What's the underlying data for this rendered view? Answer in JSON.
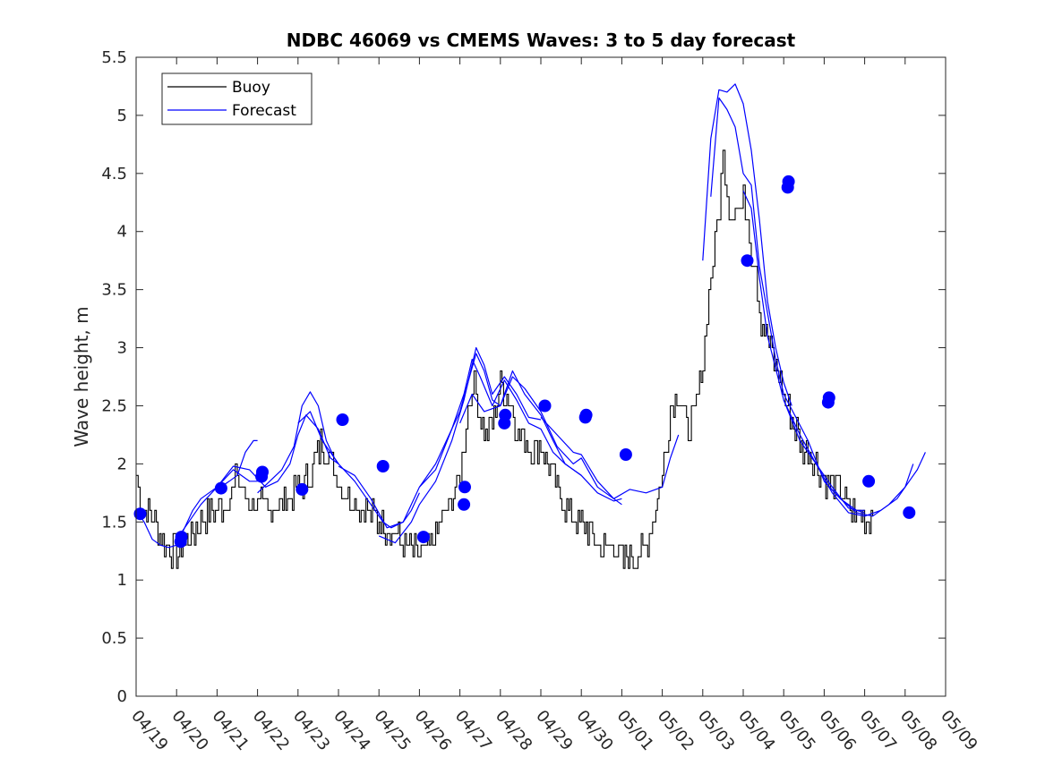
{
  "chart_data": {
    "type": "line",
    "title": "NDBC 46069 vs CMEMS Waves: 3 to 5 day forecast",
    "xlabel": "",
    "ylabel": "Wave height, m",
    "xlim": [
      "04/19",
      "05/09"
    ],
    "ylim": [
      0,
      5.5
    ],
    "x_tick_labels": [
      "04/19",
      "04/20",
      "04/21",
      "04/22",
      "04/23",
      "04/24",
      "04/25",
      "04/26",
      "04/27",
      "04/28",
      "04/29",
      "04/30",
      "05/01",
      "05/02",
      "05/03",
      "05/04",
      "05/05",
      "05/06",
      "05/07",
      "05/08",
      "05/09"
    ],
    "y_tick_labels": [
      "0",
      "0.5",
      "1",
      "1.5",
      "2",
      "2.5",
      "3",
      "3.5",
      "4",
      "4.5",
      "5",
      "5.5"
    ],
    "y_ticks": [
      0,
      0.5,
      1,
      1.5,
      2,
      2.5,
      3,
      3.5,
      4,
      4.5,
      5,
      5.5
    ],
    "grid": false,
    "legend": {
      "placement": "top-left",
      "entries": [
        "Buoy",
        "Forecast"
      ]
    },
    "colors": {
      "buoy": "#000000",
      "forecast": "#0000ff",
      "marker": "#0000ff"
    },
    "buoy": {
      "name": "Buoy",
      "points": [
        [
          0,
          1.9
        ],
        [
          0.1,
          1.7
        ],
        [
          0.3,
          1.6
        ],
        [
          0.5,
          1.5
        ],
        [
          0.7,
          1.3
        ],
        [
          1,
          1.25
        ],
        [
          1.2,
          1.3
        ],
        [
          1.4,
          1.4
        ],
        [
          1.6,
          1.5
        ],
        [
          1.8,
          1.55
        ],
        [
          2.0,
          1.6
        ],
        [
          2.2,
          1.65
        ],
        [
          2.4,
          1.75
        ],
        [
          2.5,
          1.9
        ],
        [
          2.7,
          1.7
        ],
        [
          3,
          1.65
        ],
        [
          3.3,
          1.6
        ],
        [
          3.5,
          1.65
        ],
        [
          3.7,
          1.7
        ],
        [
          3.9,
          1.75
        ],
        [
          4,
          1.8
        ],
        [
          4.2,
          1.85
        ],
        [
          4.4,
          2.0
        ],
        [
          4.6,
          2.2
        ],
        [
          4.8,
          2.05
        ],
        [
          5,
          1.85
        ],
        [
          5.2,
          1.75
        ],
        [
          5.4,
          1.7
        ],
        [
          5.6,
          1.6
        ],
        [
          5.8,
          1.55
        ],
        [
          6,
          1.5
        ],
        [
          6.2,
          1.45
        ],
        [
          6.4,
          1.4
        ],
        [
          6.6,
          1.3
        ],
        [
          6.8,
          1.25
        ],
        [
          7,
          1.2
        ],
        [
          7.2,
          1.25
        ],
        [
          7.4,
          1.4
        ],
        [
          7.6,
          1.55
        ],
        [
          7.8,
          1.7
        ],
        [
          8,
          1.85
        ],
        [
          8.1,
          2.2
        ],
        [
          8.2,
          2.5
        ],
        [
          8.3,
          2.7
        ],
        [
          8.4,
          2.55
        ],
        [
          8.6,
          2.25
        ],
        [
          8.8,
          2.35
        ],
        [
          9,
          2.7
        ],
        [
          9.2,
          2.6
        ],
        [
          9.4,
          2.3
        ],
        [
          9.6,
          2.2
        ],
        [
          9.8,
          2.1
        ],
        [
          10,
          2.15
        ],
        [
          10.2,
          2.0
        ],
        [
          10.4,
          1.8
        ],
        [
          10.6,
          1.6
        ],
        [
          10.8,
          1.55
        ],
        [
          11,
          1.5
        ],
        [
          11.2,
          1.4
        ],
        [
          11.4,
          1.3
        ],
        [
          11.6,
          1.25
        ],
        [
          11.8,
          1.3
        ],
        [
          12,
          1.15
        ],
        [
          12.2,
          1.2
        ],
        [
          12.4,
          1.2
        ],
        [
          12.6,
          1.3
        ],
        [
          12.8,
          1.6
        ],
        [
          13,
          1.9
        ],
        [
          13.2,
          2.5
        ],
        [
          13.4,
          2.6
        ],
        [
          13.6,
          2.3
        ],
        [
          13.8,
          2.4
        ],
        [
          14,
          2.9
        ],
        [
          14.1,
          3.3
        ],
        [
          14.2,
          3.6
        ],
        [
          14.3,
          3.9
        ],
        [
          14.4,
          4.2
        ],
        [
          14.5,
          4.6
        ],
        [
          14.6,
          4.4
        ],
        [
          14.7,
          4.1
        ],
        [
          14.8,
          4.3
        ],
        [
          14.9,
          4.2
        ],
        [
          15,
          4.25
        ],
        [
          15.1,
          4.15
        ],
        [
          15.2,
          3.8
        ],
        [
          15.3,
          3.7
        ],
        [
          15.4,
          3.3
        ],
        [
          15.6,
          3.1
        ],
        [
          15.8,
          2.8
        ],
        [
          16,
          2.6
        ],
        [
          16.2,
          2.4
        ],
        [
          16.4,
          2.2
        ],
        [
          16.6,
          2.1
        ],
        [
          16.8,
          2.0
        ],
        [
          17,
          1.85
        ],
        [
          17.2,
          1.8
        ],
        [
          17.4,
          1.75
        ],
        [
          17.6,
          1.6
        ],
        [
          17.8,
          1.55
        ],
        [
          18,
          1.55
        ],
        [
          18.2,
          1.55
        ]
      ]
    },
    "forecast_series": [
      {
        "name": "Forecast",
        "points": [
          [
            0,
            1.6
          ],
          [
            0.2,
            1.5
          ],
          [
            0.4,
            1.35
          ],
          [
            0.6,
            1.3
          ],
          [
            0.8,
            1.28
          ],
          [
            1,
            1.3
          ],
          [
            1.2,
            1.45
          ],
          [
            1.4,
            1.6
          ],
          [
            1.6,
            1.7
          ],
          [
            2,
            1.8
          ],
          [
            2.4,
            1.95
          ],
          [
            2.6,
            1.9
          ],
          [
            2.8,
            1.85
          ],
          [
            3,
            1.85
          ]
        ]
      },
      {
        "name": "Forecast",
        "points": [
          [
            1,
            1.35
          ],
          [
            1.3,
            1.5
          ],
          [
            1.6,
            1.65
          ],
          [
            2,
            1.8
          ],
          [
            2.4,
            1.98
          ],
          [
            2.8,
            1.95
          ],
          [
            3.2,
            1.8
          ],
          [
            3.5,
            1.85
          ],
          [
            3.8,
            2.0
          ],
          [
            4,
            2.25
          ],
          [
            4.2,
            2.42
          ],
          [
            4.5,
            2.3
          ],
          [
            4.8,
            2.05
          ],
          [
            5,
            2.0
          ]
        ]
      },
      {
        "name": "Forecast",
        "points": [
          [
            2,
            1.78
          ],
          [
            2.3,
            1.85
          ],
          [
            2.5,
            1.9
          ],
          [
            2.7,
            2.1
          ],
          [
            2.9,
            2.2
          ],
          [
            3,
            2.2
          ]
        ]
      },
      {
        "name": "Forecast",
        "points": [
          [
            3,
            1.75
          ],
          [
            3.3,
            1.85
          ],
          [
            3.6,
            1.95
          ],
          [
            3.9,
            2.15
          ],
          [
            4.1,
            2.5
          ],
          [
            4.3,
            2.62
          ],
          [
            4.5,
            2.5
          ],
          [
            4.7,
            2.2
          ],
          [
            4.9,
            2.05
          ],
          [
            5,
            2.0
          ]
        ]
      },
      {
        "name": "Forecast",
        "points": [
          [
            4,
            2.35
          ],
          [
            4.3,
            2.45
          ],
          [
            4.6,
            2.2
          ],
          [
            5,
            2.0
          ],
          [
            5.4,
            1.85
          ],
          [
            5.8,
            1.65
          ],
          [
            6.1,
            1.5
          ],
          [
            6.3,
            1.45
          ],
          [
            6.6,
            1.5
          ],
          [
            6.8,
            1.6
          ],
          [
            7,
            1.75
          ]
        ]
      },
      {
        "name": "Forecast",
        "points": [
          [
            5,
            1.98
          ],
          [
            5.4,
            1.9
          ],
          [
            5.8,
            1.7
          ],
          [
            6.2,
            1.45
          ],
          [
            6.6,
            1.5
          ],
          [
            7,
            1.8
          ],
          [
            7.4,
            1.95
          ],
          [
            7.8,
            2.3
          ],
          [
            8,
            2.45
          ],
          [
            8.2,
            2.7
          ],
          [
            8.4,
            2.95
          ],
          [
            8.6,
            2.8
          ],
          [
            8.8,
            2.55
          ],
          [
            9,
            2.5
          ]
        ]
      },
      {
        "name": "Forecast",
        "points": [
          [
            6,
            1.38
          ],
          [
            6.4,
            1.32
          ],
          [
            6.8,
            1.5
          ],
          [
            7,
            1.65
          ],
          [
            7.4,
            1.85
          ],
          [
            7.8,
            2.2
          ],
          [
            8.1,
            2.55
          ],
          [
            8.4,
            3.0
          ],
          [
            8.6,
            2.85
          ],
          [
            8.8,
            2.6
          ],
          [
            9.1,
            2.75
          ],
          [
            9.4,
            2.6
          ],
          [
            9.7,
            2.4
          ],
          [
            10,
            2.38
          ]
        ]
      },
      {
        "name": "Forecast",
        "points": [
          [
            7,
            1.8
          ],
          [
            7.4,
            2.0
          ],
          [
            7.8,
            2.3
          ],
          [
            8.1,
            2.6
          ],
          [
            8.3,
            2.9
          ],
          [
            8.5,
            2.75
          ],
          [
            8.8,
            2.5
          ],
          [
            9.1,
            2.72
          ],
          [
            9.4,
            2.55
          ],
          [
            9.7,
            2.35
          ],
          [
            10,
            2.3
          ],
          [
            10.3,
            2.1
          ],
          [
            10.6,
            2.0
          ],
          [
            11,
            1.9
          ]
        ]
      },
      {
        "name": "Forecast",
        "points": [
          [
            8,
            2.35
          ],
          [
            8.3,
            2.6
          ],
          [
            8.6,
            2.45
          ],
          [
            9,
            2.5
          ],
          [
            9.3,
            2.8
          ],
          [
            9.6,
            2.6
          ],
          [
            10,
            2.42
          ],
          [
            10.3,
            2.2
          ],
          [
            10.6,
            2.0
          ],
          [
            11,
            1.9
          ],
          [
            11.4,
            1.75
          ],
          [
            11.8,
            1.68
          ],
          [
            12,
            1.7
          ]
        ]
      },
      {
        "name": "Forecast",
        "points": [
          [
            9,
            2.5
          ],
          [
            9.3,
            2.75
          ],
          [
            9.6,
            2.65
          ],
          [
            10,
            2.45
          ],
          [
            10.4,
            2.15
          ],
          [
            10.8,
            2.0
          ],
          [
            11,
            2.05
          ],
          [
            11.4,
            1.8
          ],
          [
            11.8,
            1.7
          ],
          [
            12.2,
            1.78
          ],
          [
            12.6,
            1.75
          ],
          [
            13,
            1.8
          ],
          [
            13.2,
            2.05
          ],
          [
            13.4,
            2.25
          ]
        ]
      },
      {
        "name": "Forecast",
        "points": [
          [
            10,
            2.4
          ],
          [
            10.4,
            2.25
          ],
          [
            10.8,
            2.1
          ],
          [
            11,
            2.08
          ],
          [
            11.4,
            1.85
          ],
          [
            11.8,
            1.7
          ],
          [
            12,
            1.65
          ]
        ]
      },
      {
        "name": "Forecast",
        "points": [
          [
            14,
            3.75
          ],
          [
            14.2,
            4.8
          ],
          [
            14.4,
            5.22
          ],
          [
            14.6,
            5.2
          ],
          [
            14.8,
            5.27
          ],
          [
            15,
            5.1
          ],
          [
            15.2,
            4.7
          ],
          [
            15.4,
            4.1
          ],
          [
            15.6,
            3.4
          ],
          [
            15.8,
            3.0
          ],
          [
            16,
            2.7
          ],
          [
            16.2,
            2.5
          ]
        ]
      },
      {
        "name": "Forecast",
        "points": [
          [
            14.2,
            4.3
          ],
          [
            14.4,
            5.15
          ],
          [
            14.6,
            5.05
          ],
          [
            14.8,
            4.9
          ],
          [
            15,
            4.5
          ],
          [
            15.2,
            4.4
          ],
          [
            15.4,
            3.7
          ],
          [
            15.6,
            3.3
          ],
          [
            15.8,
            2.9
          ],
          [
            16,
            2.6
          ],
          [
            16.3,
            2.4
          ],
          [
            16.6,
            2.2
          ],
          [
            17,
            1.85
          ],
          [
            17.4,
            1.7
          ],
          [
            17.8,
            1.6
          ],
          [
            18,
            1.6
          ]
        ]
      },
      {
        "name": "Forecast",
        "points": [
          [
            15,
            4.35
          ],
          [
            15.2,
            4.2
          ],
          [
            15.4,
            3.6
          ],
          [
            15.6,
            3.1
          ],
          [
            16,
            2.55
          ],
          [
            16.4,
            2.2
          ],
          [
            16.8,
            2.0
          ],
          [
            17.2,
            1.8
          ],
          [
            17.6,
            1.62
          ],
          [
            18,
            1.58
          ]
        ]
      },
      {
        "name": "Forecast",
        "points": [
          [
            16,
            2.55
          ],
          [
            16.4,
            2.25
          ],
          [
            16.8,
            2.0
          ],
          [
            17.2,
            1.75
          ],
          [
            17.6,
            1.58
          ],
          [
            18,
            1.55
          ],
          [
            18.4,
            1.6
          ],
          [
            18.8,
            1.7
          ],
          [
            19,
            1.8
          ],
          [
            19.2,
            2.0
          ]
        ]
      },
      {
        "name": "Forecast",
        "points": [
          [
            17,
            1.85
          ],
          [
            17.4,
            1.7
          ],
          [
            17.8,
            1.58
          ],
          [
            18.2,
            1.55
          ],
          [
            18.6,
            1.65
          ],
          [
            19,
            1.8
          ],
          [
            19.3,
            1.95
          ],
          [
            19.5,
            2.1
          ]
        ]
      }
    ],
    "markers": [
      [
        0.1,
        1.57
      ],
      [
        1.1,
        1.33
      ],
      [
        1.12,
        1.37
      ],
      [
        2.1,
        1.79
      ],
      [
        3.1,
        1.89
      ],
      [
        3.12,
        1.93
      ],
      [
        4.1,
        1.78
      ],
      [
        5.1,
        2.38
      ],
      [
        6.1,
        1.98
      ],
      [
        7.1,
        1.37
      ],
      [
        8.1,
        1.65
      ],
      [
        8.12,
        1.8
      ],
      [
        9.1,
        2.35
      ],
      [
        9.12,
        2.42
      ],
      [
        10.1,
        2.5
      ],
      [
        11.1,
        2.4
      ],
      [
        11.12,
        2.42
      ],
      [
        12.1,
        2.08
      ],
      [
        15.1,
        3.75
      ],
      [
        16.1,
        4.38
      ],
      [
        16.12,
        4.43
      ],
      [
        17.1,
        2.53
      ],
      [
        17.12,
        2.57
      ],
      [
        18.1,
        1.85
      ],
      [
        19.1,
        1.58
      ]
    ]
  }
}
